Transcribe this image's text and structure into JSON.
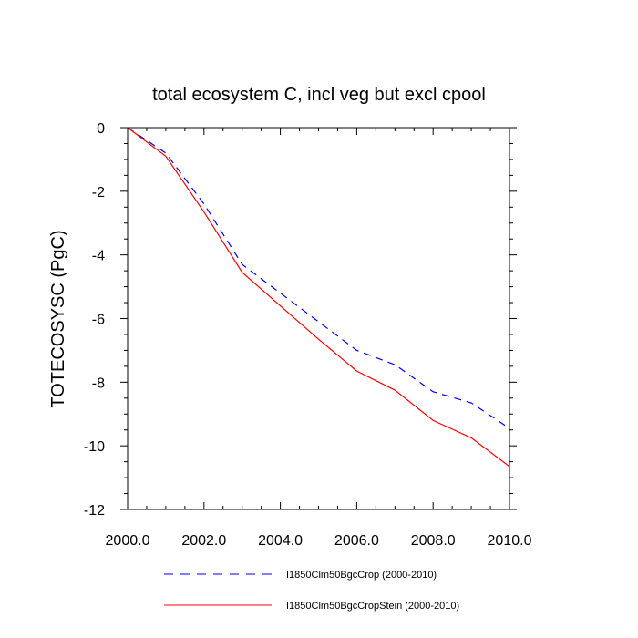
{
  "chart_data": {
    "type": "line",
    "title": "total ecosystem C, incl veg but excl cpool",
    "xlabel": "",
    "ylabel": "TOTECOSYSC  (PgC)",
    "xlim": [
      2000,
      2010
    ],
    "ylim": [
      -12,
      0
    ],
    "xticks": [
      2000,
      2002,
      2004,
      2006,
      2008,
      2010
    ],
    "xtick_labels": [
      "2000.0",
      "2002.0",
      "2004.0",
      "2006.0",
      "2008.0",
      "2010.0"
    ],
    "yticks": [
      0,
      -2,
      -4,
      -6,
      -8,
      -10,
      -12
    ],
    "ytick_labels": [
      "0",
      "-2",
      "-4",
      "-6",
      "-8",
      "-10",
      "-12"
    ],
    "grid": false,
    "legend_position": "bottom",
    "x": [
      2000,
      2001,
      2002,
      2003,
      2004,
      2005,
      2006,
      2007,
      2008,
      2009,
      2010
    ],
    "series": [
      {
        "name": "I1850Clm50BgcCrop (2000-2010)",
        "color": "#0000ff",
        "style": "dashed",
        "values": [
          0,
          -0.8,
          -2.4,
          -4.3,
          -5.2,
          -6.1,
          -7.0,
          -7.45,
          -8.3,
          -8.65,
          -9.45
        ]
      },
      {
        "name": "I1850Clm50BgcCropStein (2000-2010)",
        "color": "#ff0000",
        "style": "solid",
        "values": [
          0,
          -0.9,
          -2.65,
          -4.55,
          -5.6,
          -6.65,
          -7.65,
          -8.25,
          -9.2,
          -9.75,
          -10.65
        ]
      }
    ]
  }
}
